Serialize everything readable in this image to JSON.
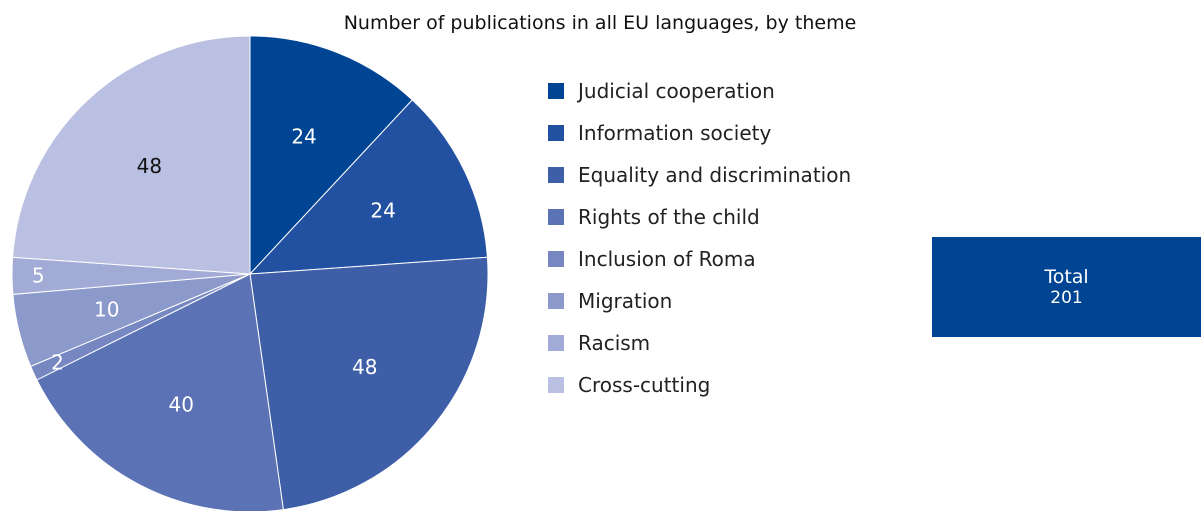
{
  "chart_data": {
    "type": "pie",
    "title": "Number of publications in all EU languages, by theme",
    "slices": [
      {
        "label": "Judicial cooperation",
        "value": 24,
        "color": "#004494"
      },
      {
        "label": "Information society",
        "value": 24,
        "color": "#2251a1"
      },
      {
        "label": "Equality and discrimination",
        "value": 48,
        "color": "#3e5ea8"
      },
      {
        "label": "Rights of the child",
        "value": 40,
        "color": "#5b72b5"
      },
      {
        "label": "Inclusion of Roma",
        "value": 2,
        "color": "#7787c2"
      },
      {
        "label": "Migration",
        "value": 10,
        "color": "#8c99cb"
      },
      {
        "label": "Racism",
        "value": 5,
        "color": "#a2aad6"
      },
      {
        "label": "Cross-cutting",
        "value": 48,
        "color": "#b9c0e2"
      }
    ],
    "legend_position": "right",
    "start_angle": "top, clockwise"
  },
  "total": {
    "label": "Total",
    "value": "201",
    "color": "#004494"
  }
}
